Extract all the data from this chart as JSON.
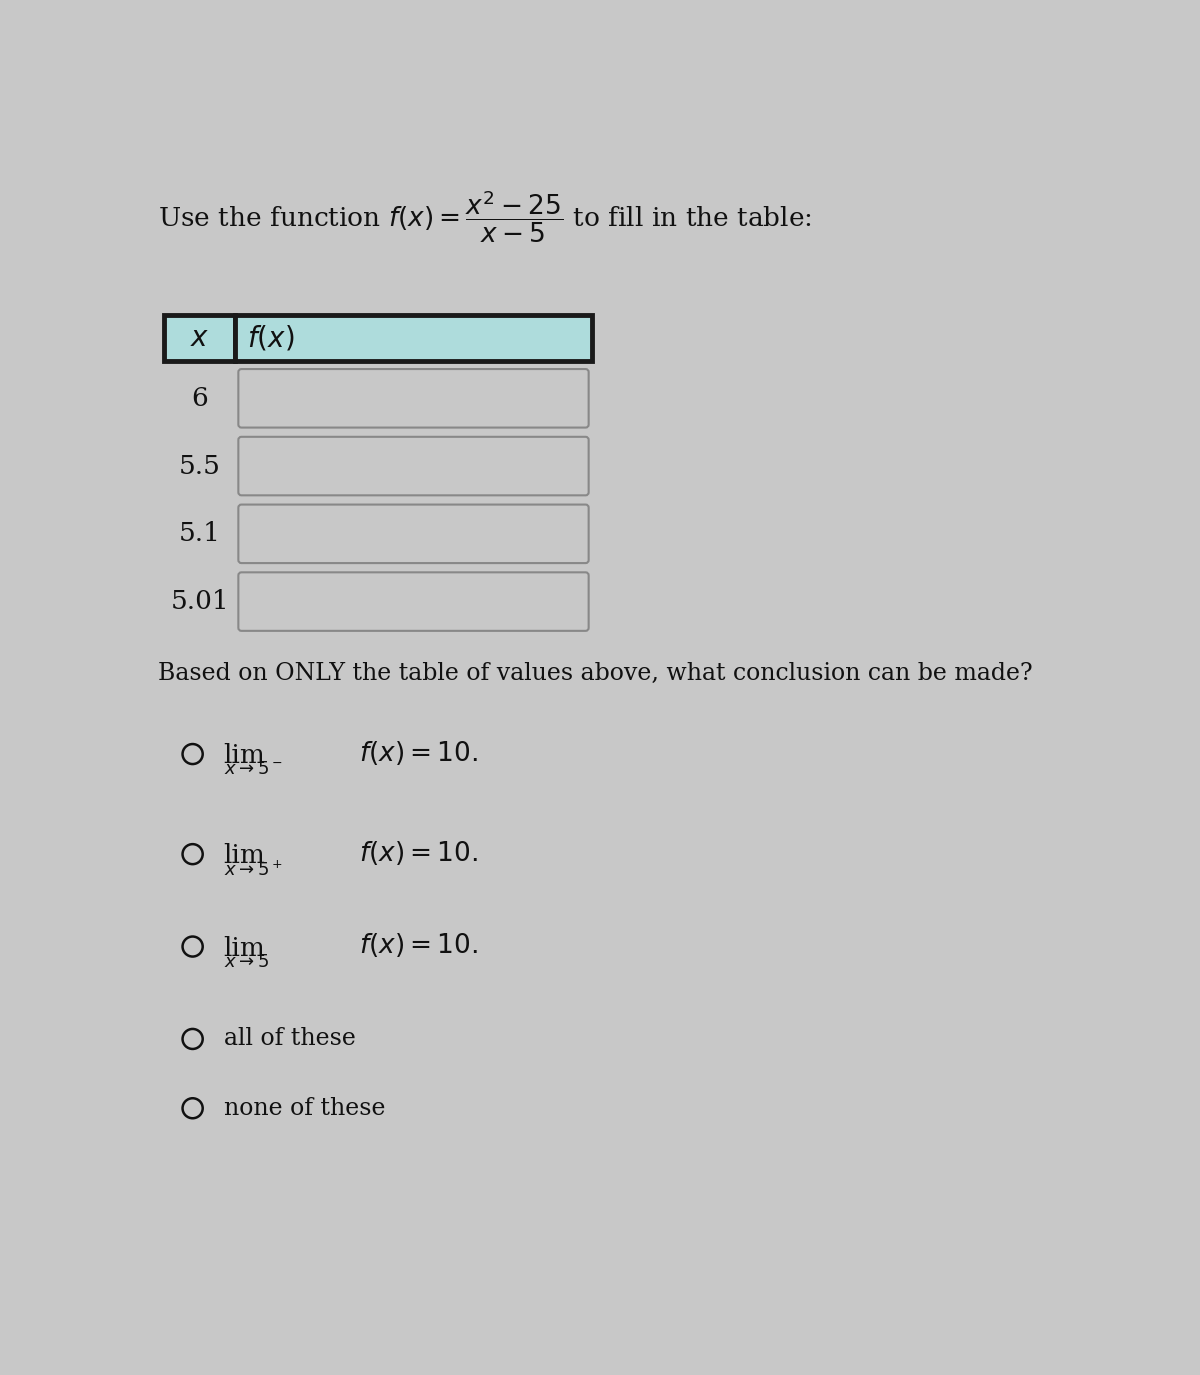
{
  "background_color": "#c8c8c8",
  "header_bg": "#aedcdc",
  "cell_bg": "#bebebe",
  "text_color": "#111111",
  "border_color_thick": "#1a1a1a",
  "border_color_thin": "#888888",
  "table_rows": [
    "6",
    "5.5",
    "5.1",
    "5.01"
  ],
  "question_text": "Based on ONLY the table of values above, what conclusion can be made?",
  "fig_width": 12.0,
  "fig_height": 13.75
}
